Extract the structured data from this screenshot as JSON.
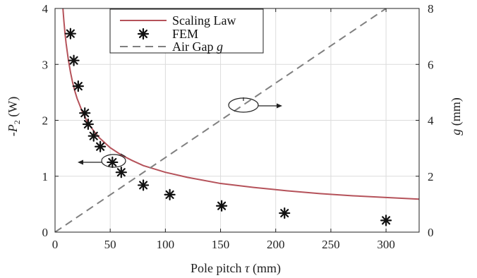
{
  "chart_data": {
    "type": "line",
    "title": "",
    "xlabel": {
      "prefix": "Pole pitch ",
      "symbol": "τ",
      "unit": " (mm)"
    },
    "ylabel_left": {
      "prefix": "-",
      "symbol": "P",
      "subscript": "2",
      "unit": " (W)"
    },
    "ylabel_right": {
      "symbol": "g",
      "unit": " (mm)"
    },
    "xlim": [
      0,
      330
    ],
    "ylim_left": [
      0,
      4
    ],
    "ylim_right": [
      0,
      8
    ],
    "x_ticks": [
      0,
      50,
      100,
      150,
      200,
      250,
      300
    ],
    "y_left_ticks": [
      0,
      1,
      2,
      3,
      4
    ],
    "y_right_ticks": [
      0,
      2,
      4,
      6,
      8
    ],
    "grid": true,
    "legend_position": "top-center",
    "series": [
      {
        "name": "Scaling Law",
        "kind": "line",
        "axis": "left",
        "color": "#b5525a",
        "x": [
          7,
          8,
          9,
          10,
          12,
          14,
          16,
          18,
          20,
          25,
          30,
          35,
          40,
          50,
          60,
          70,
          80,
          100,
          120,
          150,
          180,
          210,
          240,
          270,
          300,
          330
        ],
        "y": [
          4.04,
          3.78,
          3.56,
          3.38,
          3.09,
          2.86,
          2.67,
          2.52,
          2.39,
          2.14,
          1.95,
          1.81,
          1.69,
          1.51,
          1.38,
          1.28,
          1.19,
          1.07,
          0.98,
          0.87,
          0.8,
          0.74,
          0.69,
          0.65,
          0.62,
          0.59
        ]
      },
      {
        "name": "FEM",
        "kind": "scatter",
        "axis": "left",
        "color": "#111111",
        "x": [
          14,
          17,
          21,
          27,
          30,
          35,
          41,
          52,
          60,
          80,
          104,
          151,
          208,
          300
        ],
        "y": [
          3.55,
          3.07,
          2.61,
          2.13,
          1.93,
          1.72,
          1.53,
          1.25,
          1.07,
          0.84,
          0.67,
          0.47,
          0.34,
          0.21
        ]
      },
      {
        "name": "Air Gap g",
        "kind": "dashed-line",
        "axis": "right",
        "color": "#808080",
        "x": [
          0,
          300
        ],
        "y": [
          0,
          8
        ]
      }
    ],
    "legend": [
      {
        "prefix": "Scaling Law",
        "symbol": ""
      },
      {
        "prefix": "FEM",
        "symbol": ""
      },
      {
        "prefix": "Air Gap ",
        "symbol": "g"
      }
    ]
  }
}
